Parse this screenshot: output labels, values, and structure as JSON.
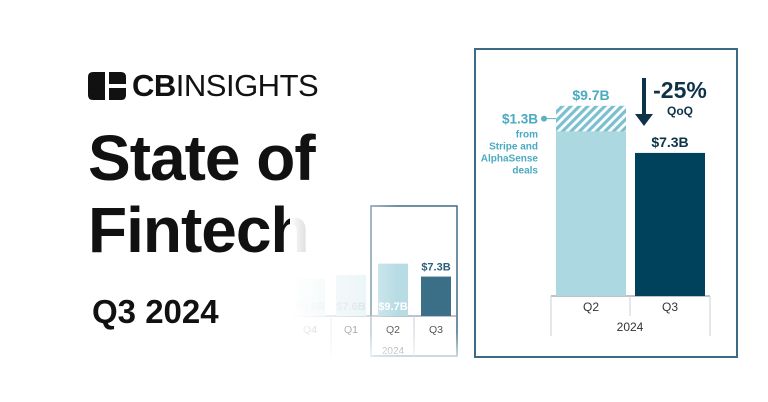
{
  "brand": {
    "name_bold": "CB",
    "name_light": "INSIGHTS"
  },
  "header": {
    "title_line1": "State of",
    "title_line2": "Fintech",
    "period": "Q3 2024"
  },
  "colors": {
    "light": "#acd8e2",
    "dark": "#00415c",
    "mini_light": "#e0eff3",
    "mini_mid": "#b8dce4",
    "mini_dark": "#3a6f87",
    "border": "#3d6b86"
  },
  "chart_data": [
    {
      "id": "mini-trend",
      "type": "bar",
      "categories": [
        "Q4",
        "Q1",
        "Q2",
        "Q3"
      ],
      "values": [
        6.9,
        7.6,
        9.7,
        7.3
      ],
      "labels": [
        "$6.9B",
        "$7.6B",
        "$9.7B",
        "$7.3B"
      ],
      "group_label": "2024",
      "highlight": "Q3"
    },
    {
      "id": "qoq-comparison",
      "type": "bar",
      "categories": [
        "Q2",
        "Q3"
      ],
      "values": [
        9.7,
        7.3
      ],
      "labels": [
        "$9.7B",
        "$7.3B"
      ],
      "group_label": "2024",
      "hatched_segment": {
        "category": "Q2",
        "value": 1.3,
        "label": "$1.3B",
        "note_lines": [
          "from",
          "Stripe and",
          "AlphaSense",
          "deals"
        ]
      },
      "change": {
        "value": "-25%",
        "label": "QoQ"
      }
    }
  ]
}
